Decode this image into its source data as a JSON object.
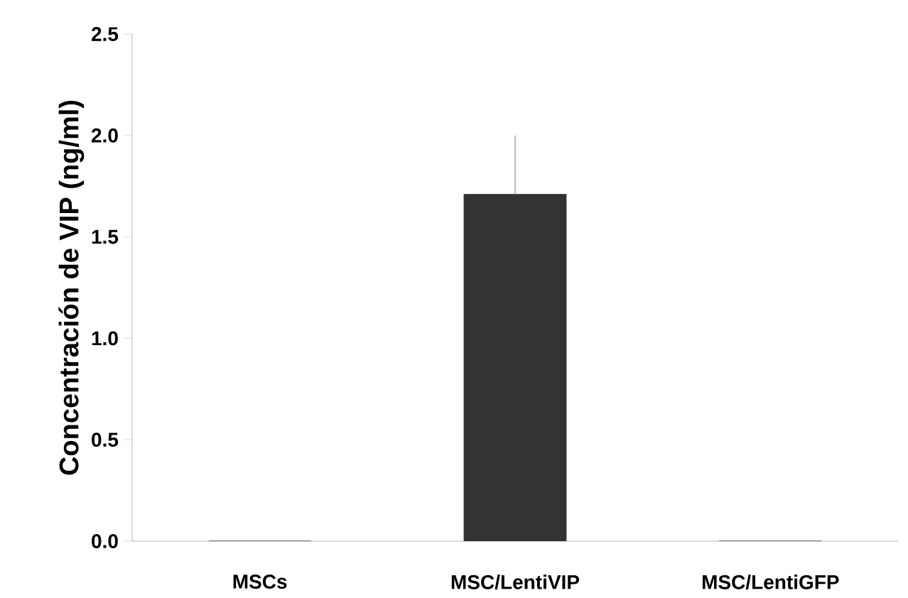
{
  "chart_data": {
    "type": "bar",
    "ylabel": "Concentración de VIP (ng/ml)",
    "categories": [
      "MSCs",
      "MSC/LentiVIP",
      "MSC/LentiGFP"
    ],
    "values": [
      0,
      1.71,
      0
    ],
    "errors": [
      null,
      0.29,
      null
    ],
    "color": "#333333",
    "ylim": [
      0,
      2.5
    ],
    "yticks": [
      {
        "value": 0,
        "label": "0.0"
      },
      {
        "value": 0.5,
        "label": "0.5"
      },
      {
        "value": 1,
        "label": "1.0"
      },
      {
        "value": 1.5,
        "label": "1.5"
      },
      {
        "value": 2,
        "label": "2.0"
      },
      {
        "value": 2.5,
        "label": "2.5"
      }
    ],
    "grid": false
  }
}
